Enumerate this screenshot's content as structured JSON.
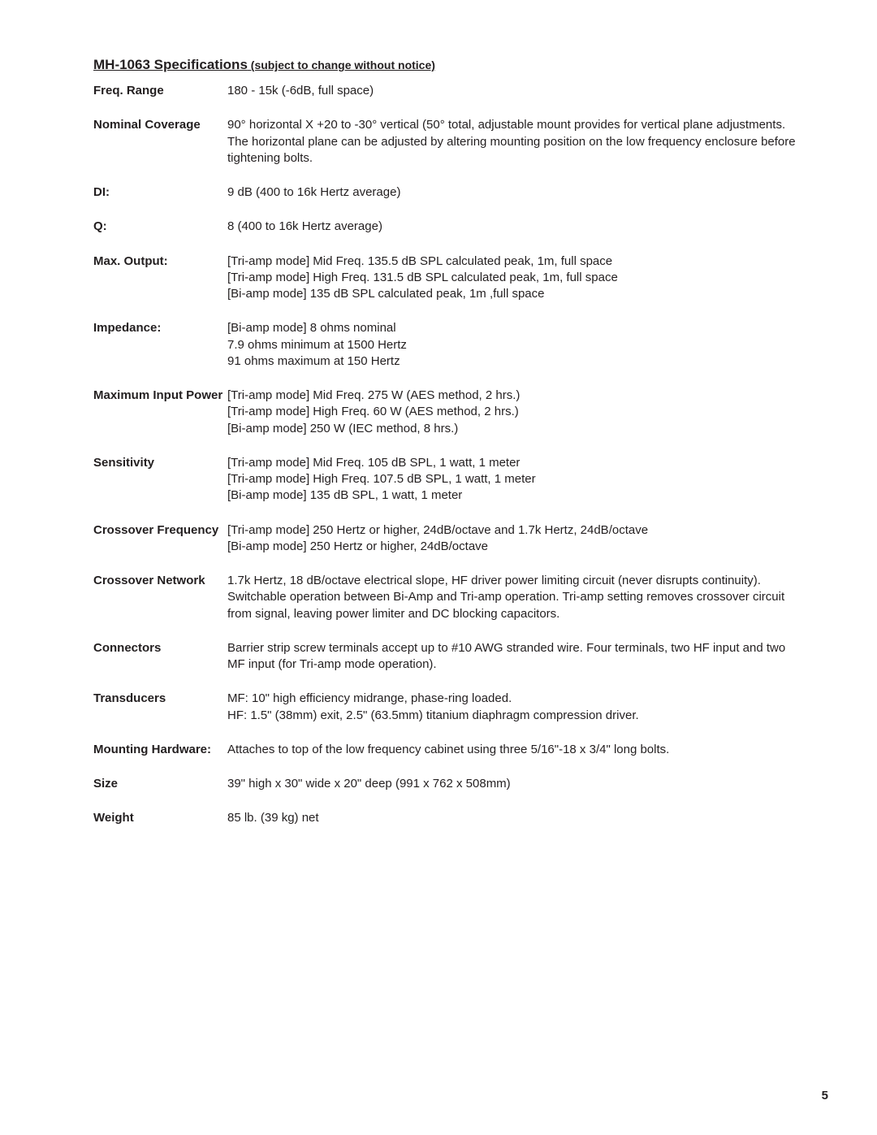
{
  "title": {
    "main": "MH-1063 Specifications",
    "sub": " (subject to change without notice) "
  },
  "specs": [
    {
      "label": "Freq. Range",
      "lines": [
        "180 - 15k (-6dB, full space)"
      ]
    },
    {
      "label": "Nominal Coverage",
      "lines": [
        "90° horizontal X +20 to -30° vertical (50° total, adjustable mount provides for vertical plane adjustments.  The horizontal plane can be adjusted by altering mounting position on the low frequency enclosure before tightening bolts."
      ]
    },
    {
      "label": "DI:",
      "lines": [
        "9 dB  (400 to 16k Hertz average)"
      ]
    },
    {
      "label": "Q:",
      "lines": [
        "8 (400 to 16k Hertz average)"
      ]
    },
    {
      "label": "Max. Output:",
      "lines": [
        "[Tri-amp mode]  Mid Freq. 135.5 dB SPL calculated peak, 1m, full space",
        "[Tri-amp mode]  High Freq. 131.5 dB SPL calculated peak, 1m, full space",
        "[Bi-amp mode] 135 dB SPL calculated peak, 1m ,full space"
      ]
    },
    {
      "label": "Impedance:",
      "lines": [
        "[Bi-amp mode] 8 ohms nominal",
        "7.9 ohms minimum at 1500 Hertz",
        "91 ohms maximum at 150 Hertz"
      ]
    },
    {
      "label": "Maximum Input Power",
      "lines": [
        "[Tri-amp mode]  Mid Freq. 275 W (AES method, 2 hrs.)",
        "[Tri-amp mode]  High Freq. 60 W (AES method, 2 hrs.)",
        "[Bi-amp mode] 250 W (IEC method, 8 hrs.)"
      ]
    },
    {
      "label": "Sensitivity",
      "lines": [
        "[Tri-amp mode]  Mid Freq. 105 dB SPL, 1 watt, 1 meter",
        "[Tri-amp mode]  High Freq. 107.5 dB SPL, 1 watt, 1 meter",
        "[Bi-amp mode] 135 dB SPL, 1 watt, 1 meter"
      ]
    },
    {
      "label": "Crossover Frequency",
      "lines": [
        "[Tri-amp mode] 250 Hertz or higher, 24dB/octave and 1.7k Hertz, 24dB/octave",
        "[Bi-amp mode] 250 Hertz or higher, 24dB/octave"
      ]
    },
    {
      "label": "Crossover Network",
      "lines": [
        "1.7k Hertz, 18 dB/octave electrical slope, HF driver power limiting circuit (never disrupts continuity).  Switchable operation between Bi-Amp and Tri-amp operation.  Tri-amp setting removes crossover circuit from signal, leaving power limiter and DC blocking capacitors."
      ]
    },
    {
      "label": "Connectors",
      "lines": [
        "Barrier strip screw terminals accept up to #10 AWG stranded wire.  Four terminals, two HF input and two MF input (for Tri-amp mode operation)."
      ]
    },
    {
      "label": "Transducers",
      "lines": [
        "MF:   10\" high efficiency midrange, phase-ring loaded.",
        "HF:    1.5\" (38mm) exit, 2.5\" (63.5mm) titanium diaphragm compression driver."
      ]
    },
    {
      "label": "Mounting Hardware:",
      "lines": [
        "Attaches to top of the low frequency cabinet using three 5/16\"-18 x 3/4\" long bolts."
      ]
    },
    {
      "label": "Size",
      "lines": [
        "39\" high x 30\" wide x 20\" deep (991 x 762 x 508mm)"
      ]
    },
    {
      "label": "Weight",
      "lines": [
        "85 lb. (39 kg) net"
      ]
    }
  ],
  "page_number": "5",
  "colors": {
    "text": "#231f20",
    "background": "#ffffff"
  }
}
